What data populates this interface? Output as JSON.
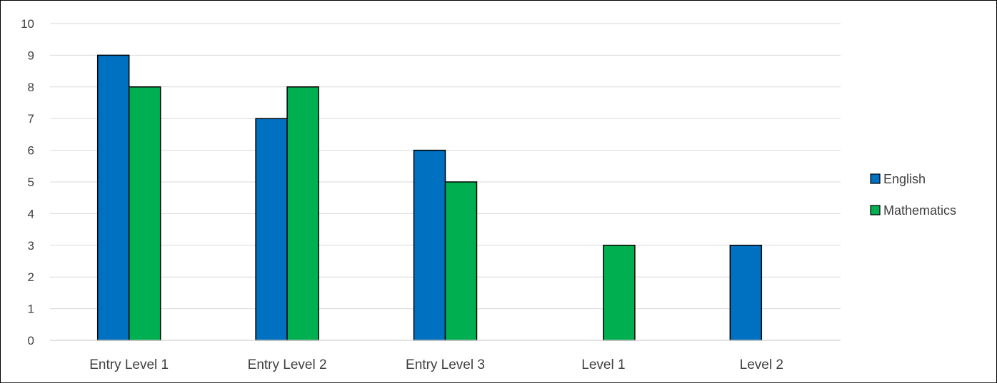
{
  "chart_data": {
    "type": "bar",
    "categories": [
      "Entry Level 1",
      "Entry Level 2",
      "Entry Level 3",
      "Level 1",
      "Level 2"
    ],
    "series": [
      {
        "name": "English",
        "color": "#0070C0",
        "values": [
          9,
          7,
          6,
          null,
          3
        ]
      },
      {
        "name": "Mathematics",
        "color": "#00B050",
        "values": [
          8,
          8,
          5,
          3,
          null
        ]
      }
    ],
    "ylim": [
      0,
      10
    ],
    "yticks": [
      "0",
      "1",
      "2",
      "3",
      "4",
      "5",
      "6",
      "7",
      "8",
      "9",
      "10"
    ],
    "grid": true,
    "legend_position": "right"
  }
}
